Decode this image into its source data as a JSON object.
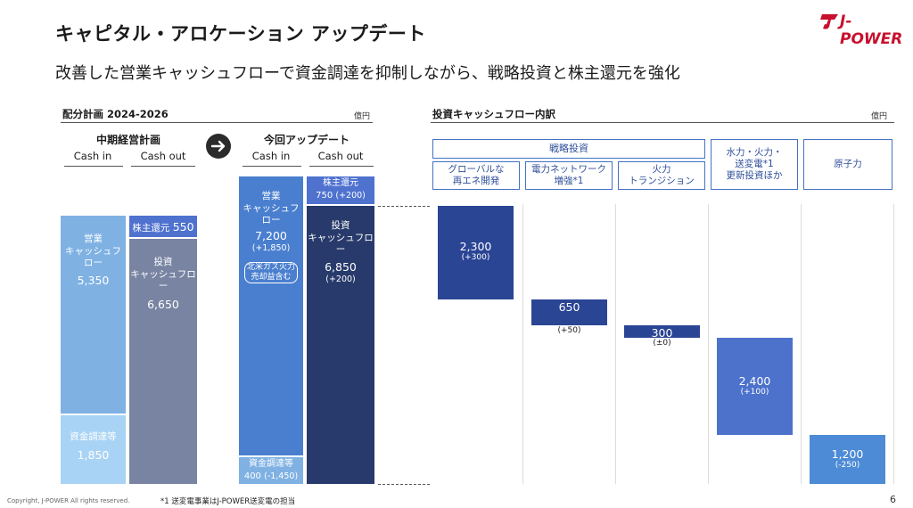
{
  "header": {
    "title": "キャピタル・アロケーション アップデート",
    "subtitle": "改善した営業キャッシュフローで資金調達を抑制しながら、戦略投資と株主還元を強化",
    "logo_text": "J-POWER"
  },
  "left": {
    "section_title": "配分計画 2024-2026",
    "unit": "億円",
    "plan": {
      "title": "中期経営計画",
      "cash_in_label": "Cash in",
      "cash_out_label": "Cash out",
      "operating_cf": {
        "label": "営業\nキャッシュフロー",
        "value": "5,350"
      },
      "financing": {
        "label": "資金調達等",
        "value": "1,850"
      },
      "shareholder_return": {
        "label": "株主還元",
        "value": "550"
      },
      "investment_cf": {
        "label": "投資\nキャッシュフロー",
        "value": "6,650"
      }
    },
    "update": {
      "title": "今回アップデート",
      "cash_in_label": "Cash in",
      "cash_out_label": "Cash out",
      "operating_cf": {
        "label": "営業\nキャッシュフロー",
        "value": "7,200",
        "delta": "(+1,850)"
      },
      "note": "北米ガス火力\n売却益含む",
      "financing": {
        "label": "資金調達等",
        "value": "400",
        "delta": "(-1,450)"
      },
      "shareholder_return": {
        "label": "株主還元",
        "value": "750",
        "delta": "(+200)"
      },
      "investment_cf": {
        "label": "投資\nキャッシュフロー",
        "value": "6,850",
        "delta": "(+200)"
      }
    }
  },
  "right": {
    "section_title": "投資キャッシュフロー内訳",
    "unit": "億円",
    "strategic_header": "戦略投資",
    "categories": [
      {
        "label": "グローバルな\n再エネ開発",
        "value": "2,300",
        "delta": "(+300)"
      },
      {
        "label": "電力ネットワーク\n増強*1",
        "value": "650",
        "delta": "(+50)"
      },
      {
        "label": "火力\nトランジション",
        "value": "300",
        "delta": "(±0)"
      },
      {
        "label": "水力・火力・\n送変電*1\n更新投資ほか",
        "value": "2,400",
        "delta": "(+100)"
      },
      {
        "label": "原子力",
        "value": "1,200",
        "delta": "(-250)"
      }
    ]
  },
  "chart_data": {
    "type": "bar",
    "title": "投資キャッシュフロー内訳",
    "unit": "億円",
    "categories": [
      "グローバルな再エネ開発",
      "電力ネットワーク増強",
      "火力トランジション",
      "水力・火力・送変電更新投資ほか",
      "原子力"
    ],
    "values": [
      2300,
      650,
      300,
      2400,
      1200
    ],
    "deltas": [
      300,
      50,
      0,
      100,
      -250
    ],
    "total": 6850
  },
  "footer": {
    "copyright": "Copyright, J-POWER All rights reserved.",
    "footnote": "*1 送変電事業はJ-POWER送変電の担当",
    "page": "6"
  }
}
